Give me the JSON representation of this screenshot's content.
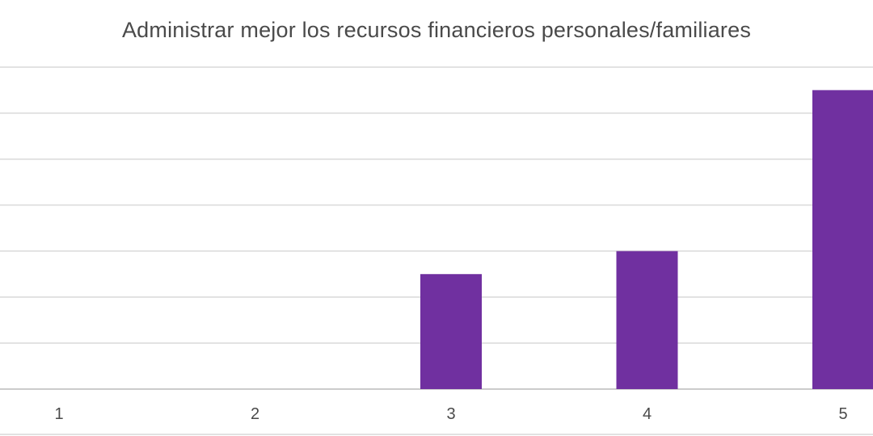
{
  "chart_data": {
    "type": "bar",
    "title": "Administrar mejor los recursos financieros personales/familiares",
    "xlabel": "",
    "ylabel": "",
    "categories": [
      "1",
      "2",
      "3",
      "4",
      "5"
    ],
    "values": [
      0,
      0,
      5,
      6,
      13
    ],
    "ylim": [
      0,
      14
    ],
    "grid": true,
    "legend": "none",
    "bar_color": "#7030a0"
  }
}
